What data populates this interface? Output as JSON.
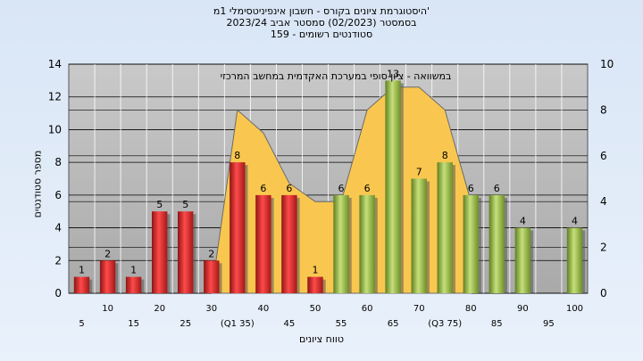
{
  "header": {
    "title_line1": "היסטוגרמת ציונים בקורס - חשבון אינפיניטסימלי 1מ'",
    "title_line2": "בסמסטר  (02/2023)  סמסטר אביב 2023/24",
    "title_line3": "סטודנטים רשומים - 159"
  },
  "chart_data": {
    "type": "bar",
    "title": "היסטוגרמת ציונים בקורס - חשבון אינפיניטסימלי 1מ'",
    "subtitle": "במשוואה - ציון סופי במערכת האקדמית במחשב המרכזי",
    "xlabel": "טווח ציונים",
    "ylabel": "מספר סטודנטים",
    "ylim": [
      0,
      14
    ],
    "y2lim": [
      0,
      10
    ],
    "y_ticks": [
      0,
      2,
      4,
      6,
      8,
      10,
      12,
      14
    ],
    "y2_ticks": [
      0,
      2,
      4,
      6,
      8,
      10
    ],
    "grid": true,
    "categories": [
      "5",
      "10",
      "15",
      "20",
      "25",
      "30",
      "(Q1 35)",
      "40",
      "45",
      "50",
      "55",
      "60",
      "65",
      "70",
      "(Q3 75)",
      "80",
      "85",
      "90",
      "95",
      "100"
    ],
    "values": [
      1,
      2,
      1,
      5,
      5,
      2,
      8,
      6,
      6,
      1,
      6,
      6,
      13,
      7,
      8,
      6,
      6,
      4,
      0,
      4
    ],
    "value_labels": [
      "1",
      "2",
      "1",
      "5",
      "5",
      "2",
      "8",
      "6",
      "6",
      "1",
      "6",
      "6",
      "13",
      "7",
      "8",
      "6",
      "6",
      "4",
      "",
      "4"
    ],
    "bar_colors": [
      "red",
      "red",
      "red",
      "red",
      "red",
      "red",
      "red",
      "red",
      "red",
      "red",
      "green",
      "green",
      "green",
      "green",
      "green",
      "green",
      "green",
      "green",
      "green",
      "green"
    ],
    "area_series": {
      "type": "area",
      "axis": "right",
      "x": [
        "30",
        "(Q1 35)",
        "40",
        "45",
        "50",
        "55",
        "60",
        "65",
        "70",
        "(Q3 75)",
        "80"
      ],
      "values": [
        0,
        8,
        7,
        4.8,
        4,
        4,
        8,
        9,
        9,
        8,
        4
      ]
    },
    "colors": {
      "red_bar": "#d62f2f",
      "green_bar": "#8fb83c",
      "area_fill": "#f9c74f",
      "plot_bg": "#b9b9b9"
    }
  }
}
